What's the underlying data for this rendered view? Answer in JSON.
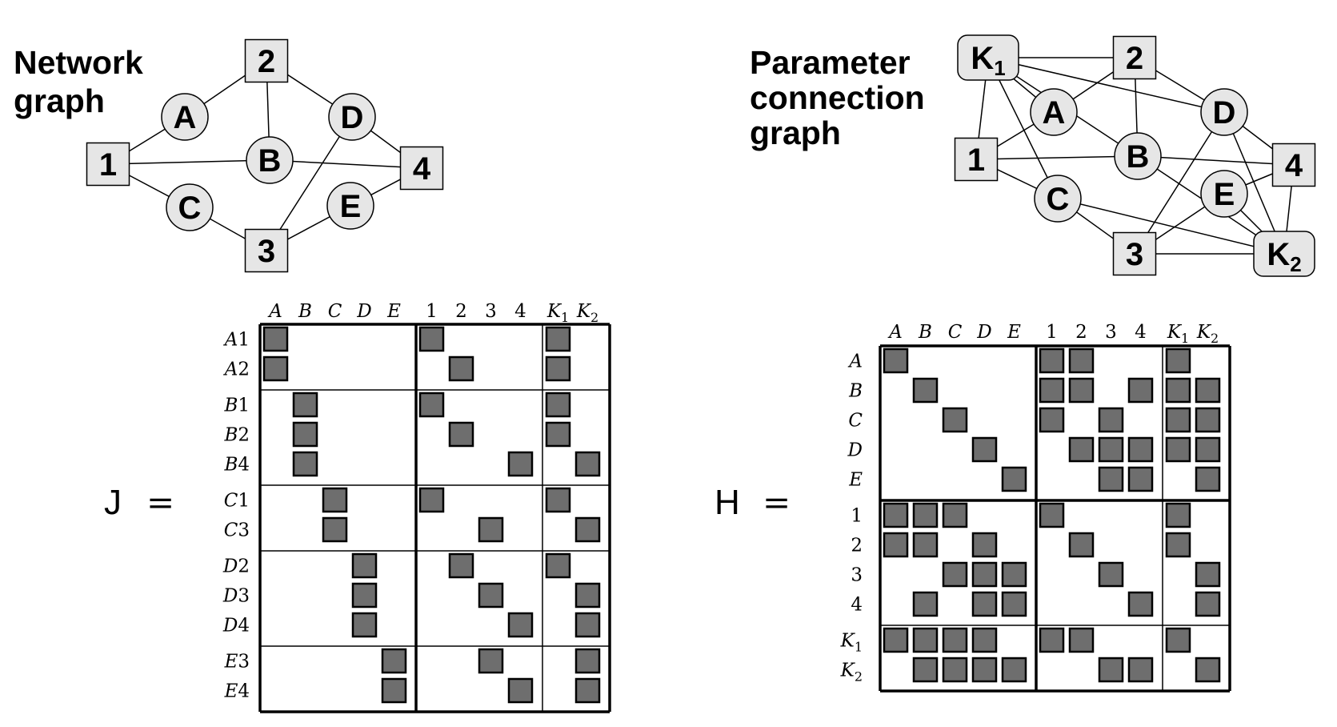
{
  "network_graph": {
    "title_line1": "Network",
    "title_line2": "graph",
    "nodes": [
      {
        "id": "1",
        "label": "1",
        "kind": "square"
      },
      {
        "id": "2",
        "label": "2",
        "kind": "square"
      },
      {
        "id": "3",
        "label": "3",
        "kind": "square"
      },
      {
        "id": "4",
        "label": "4",
        "kind": "square"
      },
      {
        "id": "A",
        "label": "A",
        "kind": "circle"
      },
      {
        "id": "B",
        "label": "B",
        "kind": "circle"
      },
      {
        "id": "C",
        "label": "C",
        "kind": "circle"
      },
      {
        "id": "D",
        "label": "D",
        "kind": "circle"
      },
      {
        "id": "E",
        "label": "E",
        "kind": "circle"
      }
    ],
    "edges": [
      [
        "1",
        "A"
      ],
      [
        "A",
        "2"
      ],
      [
        "2",
        "B"
      ],
      [
        "2",
        "D"
      ],
      [
        "1",
        "B"
      ],
      [
        "1",
        "C"
      ],
      [
        "C",
        "3"
      ],
      [
        "3",
        "D"
      ],
      [
        "3",
        "E"
      ],
      [
        "D",
        "4"
      ],
      [
        "B",
        "4"
      ],
      [
        "E",
        "4"
      ]
    ]
  },
  "parameter_graph": {
    "title_line1": "Parameter",
    "title_line2": "connection",
    "title_line3": "graph",
    "nodes": [
      {
        "id": "K1",
        "label": "K",
        "sub": "1",
        "kind": "roundrect"
      },
      {
        "id": "K2",
        "label": "K",
        "sub": "2",
        "kind": "roundrect"
      },
      {
        "id": "1",
        "label": "1",
        "kind": "square"
      },
      {
        "id": "2",
        "label": "2",
        "kind": "square"
      },
      {
        "id": "3",
        "label": "3",
        "kind": "square"
      },
      {
        "id": "4",
        "label": "4",
        "kind": "square"
      },
      {
        "id": "A",
        "label": "A",
        "kind": "circle"
      },
      {
        "id": "B",
        "label": "B",
        "kind": "circle"
      },
      {
        "id": "C",
        "label": "C",
        "kind": "circle"
      },
      {
        "id": "D",
        "label": "D",
        "kind": "circle"
      },
      {
        "id": "E",
        "label": "E",
        "kind": "circle"
      }
    ],
    "edges": [
      [
        "K1",
        "2"
      ],
      [
        "K1",
        "A"
      ],
      [
        "K1",
        "B"
      ],
      [
        "K1",
        "D"
      ],
      [
        "K1",
        "C"
      ],
      [
        "K1",
        "1"
      ],
      [
        "A",
        "2"
      ],
      [
        "1",
        "A"
      ],
      [
        "1",
        "B"
      ],
      [
        "1",
        "C"
      ],
      [
        "2",
        "B"
      ],
      [
        "B",
        "4"
      ],
      [
        "2",
        "D"
      ],
      [
        "D",
        "4"
      ],
      [
        "D",
        "3"
      ],
      [
        "D",
        "K2"
      ],
      [
        "C",
        "K2"
      ],
      [
        "C",
        "3"
      ],
      [
        "B",
        "K2"
      ],
      [
        "E",
        "4"
      ],
      [
        "E",
        "3"
      ],
      [
        "E",
        "K2"
      ],
      [
        "3",
        "K2"
      ],
      [
        "4",
        "K2"
      ]
    ]
  },
  "matrix_J": {
    "name": "J",
    "equals": "=",
    "col_groups": [
      5,
      4,
      2
    ],
    "col_labels": [
      {
        "t": "A",
        "italic": true
      },
      {
        "t": "B",
        "italic": true
      },
      {
        "t": "C",
        "italic": true
      },
      {
        "t": "D",
        "italic": true
      },
      {
        "t": "E",
        "italic": true
      },
      {
        "t": "1"
      },
      {
        "t": "2"
      },
      {
        "t": "3"
      },
      {
        "t": "4"
      },
      {
        "t": "K",
        "sub": "1",
        "italic": true
      },
      {
        "t": "K",
        "sub": "2",
        "italic": true
      }
    ],
    "row_groups": [
      2,
      3,
      2,
      3,
      2
    ],
    "row_labels": [
      "A1",
      "A2",
      "B1",
      "B2",
      "B4",
      "C1",
      "C3",
      "D2",
      "D3",
      "D4",
      "E3",
      "E4"
    ],
    "filled": [
      [
        0,
        0
      ],
      [
        0,
        5
      ],
      [
        0,
        9
      ],
      [
        1,
        0
      ],
      [
        1,
        6
      ],
      [
        1,
        9
      ],
      [
        2,
        1
      ],
      [
        2,
        5
      ],
      [
        2,
        9
      ],
      [
        3,
        1
      ],
      [
        3,
        6
      ],
      [
        3,
        9
      ],
      [
        4,
        1
      ],
      [
        4,
        8
      ],
      [
        4,
        10
      ],
      [
        5,
        2
      ],
      [
        5,
        5
      ],
      [
        5,
        9
      ],
      [
        6,
        2
      ],
      [
        6,
        7
      ],
      [
        6,
        10
      ],
      [
        7,
        3
      ],
      [
        7,
        6
      ],
      [
        7,
        9
      ],
      [
        8,
        3
      ],
      [
        8,
        7
      ],
      [
        8,
        10
      ],
      [
        9,
        3
      ],
      [
        9,
        8
      ],
      [
        9,
        10
      ],
      [
        10,
        4
      ],
      [
        10,
        7
      ],
      [
        10,
        10
      ],
      [
        11,
        4
      ],
      [
        11,
        8
      ],
      [
        11,
        10
      ]
    ]
  },
  "matrix_H": {
    "name": "H",
    "equals": "=",
    "col_groups": [
      5,
      4,
      2
    ],
    "col_labels": [
      {
        "t": "A",
        "italic": true
      },
      {
        "t": "B",
        "italic": true
      },
      {
        "t": "C",
        "italic": true
      },
      {
        "t": "D",
        "italic": true
      },
      {
        "t": "E",
        "italic": true
      },
      {
        "t": "1"
      },
      {
        "t": "2"
      },
      {
        "t": "3"
      },
      {
        "t": "4"
      },
      {
        "t": "K",
        "sub": "1",
        "italic": true
      },
      {
        "t": "K",
        "sub": "2",
        "italic": true
      }
    ],
    "row_groups": [
      5,
      4,
      2
    ],
    "row_labels": [
      {
        "t": "A",
        "italic": true
      },
      {
        "t": "B",
        "italic": true
      },
      {
        "t": "C",
        "italic": true
      },
      {
        "t": "D",
        "italic": true
      },
      {
        "t": "E",
        "italic": true
      },
      {
        "t": "1"
      },
      {
        "t": "2"
      },
      {
        "t": "3"
      },
      {
        "t": "4"
      },
      {
        "t": "K",
        "sub": "1",
        "italic": true
      },
      {
        "t": "K",
        "sub": "2",
        "italic": true
      }
    ],
    "filled": [
      [
        0,
        0
      ],
      [
        0,
        5
      ],
      [
        0,
        6
      ],
      [
        0,
        9
      ],
      [
        1,
        1
      ],
      [
        1,
        5
      ],
      [
        1,
        6
      ],
      [
        1,
        8
      ],
      [
        1,
        9
      ],
      [
        1,
        10
      ],
      [
        2,
        2
      ],
      [
        2,
        5
      ],
      [
        2,
        7
      ],
      [
        2,
        9
      ],
      [
        2,
        10
      ],
      [
        3,
        3
      ],
      [
        3,
        6
      ],
      [
        3,
        7
      ],
      [
        3,
        8
      ],
      [
        3,
        9
      ],
      [
        3,
        10
      ],
      [
        4,
        4
      ],
      [
        4,
        7
      ],
      [
        4,
        8
      ],
      [
        4,
        10
      ],
      [
        5,
        0
      ],
      [
        5,
        1
      ],
      [
        5,
        2
      ],
      [
        5,
        5
      ],
      [
        5,
        9
      ],
      [
        6,
        0
      ],
      [
        6,
        1
      ],
      [
        6,
        3
      ],
      [
        6,
        6
      ],
      [
        6,
        9
      ],
      [
        7,
        2
      ],
      [
        7,
        3
      ],
      [
        7,
        4
      ],
      [
        7,
        7
      ],
      [
        7,
        10
      ],
      [
        8,
        1
      ],
      [
        8,
        3
      ],
      [
        8,
        4
      ],
      [
        8,
        8
      ],
      [
        8,
        10
      ],
      [
        9,
        0
      ],
      [
        9,
        1
      ],
      [
        9,
        2
      ],
      [
        9,
        3
      ],
      [
        9,
        5
      ],
      [
        9,
        6
      ],
      [
        9,
        9
      ],
      [
        10,
        1
      ],
      [
        10,
        2
      ],
      [
        10,
        3
      ],
      [
        10,
        4
      ],
      [
        10,
        7
      ],
      [
        10,
        8
      ],
      [
        10,
        10
      ]
    ]
  }
}
